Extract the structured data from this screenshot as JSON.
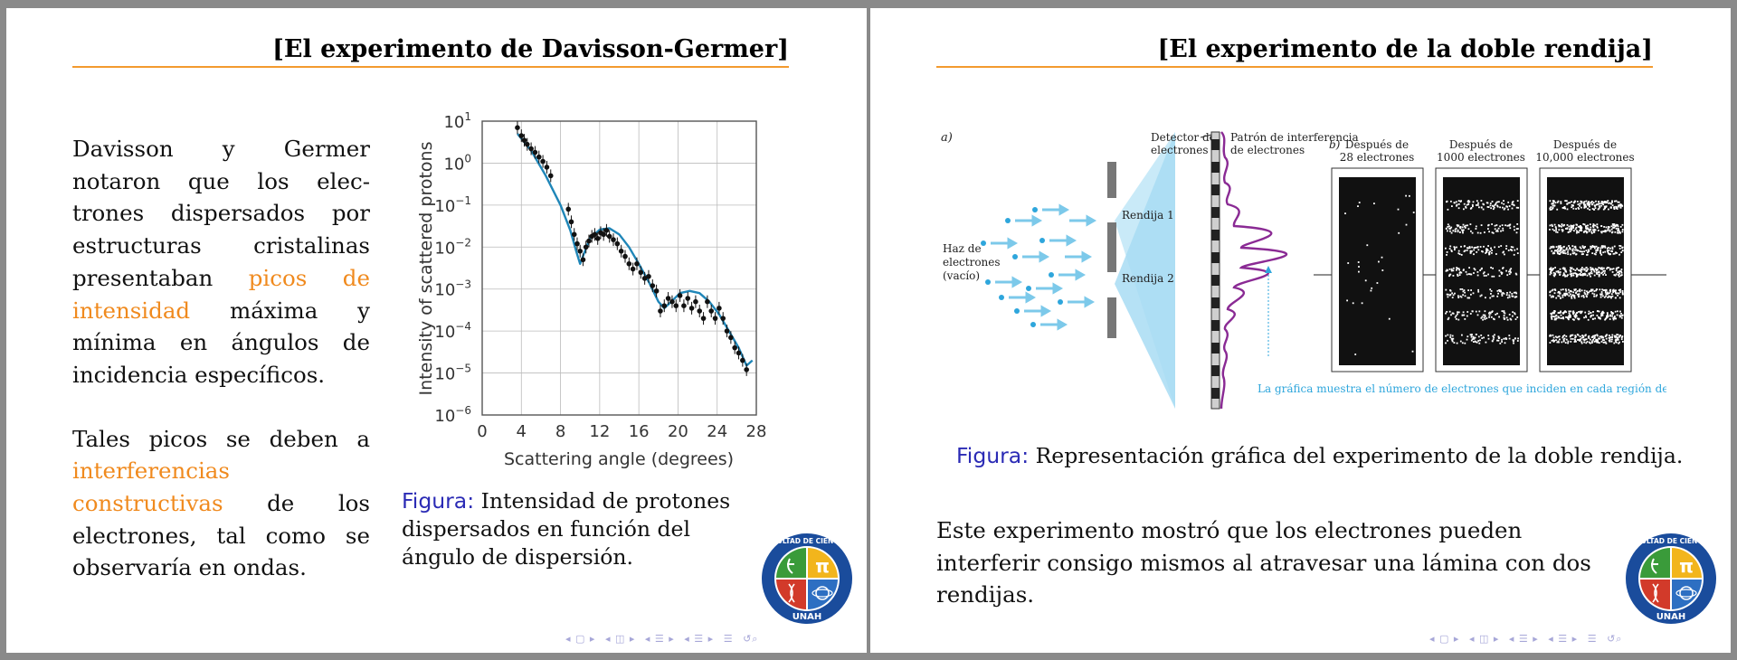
{
  "left_slide": {
    "title": "[El experimento de Davisson-Germer]",
    "paragraph1": {
      "part1": "Davisson y Germer notaron que los elec­trones dispersados por estructuras cristalinas presentaban ",
      "highlight": "picos de intensidad",
      "part2": " máxima y mínima en ángulos de incidencia específicos."
    },
    "paragraph2": {
      "part1": "Tales picos se deben a ",
      "highlight": "interferencias constructivas",
      "part2": " de los electrones, tal como se observaría en ondas."
    },
    "caption_label": "Figura:",
    "caption_text": " Intensidad de protones dispersados en función del ángulo de dispersión."
  },
  "chart_data": {
    "type": "scatter",
    "title": "",
    "xlabel": "Scattering angle (degrees)",
    "ylabel": "Intensity of scattered protons",
    "xlim": [
      0,
      28
    ],
    "ylim_log10": [
      -6,
      1
    ],
    "y_scale": "log",
    "grid": true,
    "x_ticks": [
      "0",
      "4",
      "8",
      "12",
      "16",
      "20",
      "24",
      "28"
    ],
    "y_ticks": [
      {
        "base": "10",
        "exp": "1",
        "value": 1
      },
      {
        "base": "10",
        "exp": "0",
        "value": 0
      },
      {
        "base": "10",
        "exp": "−1",
        "value": -1
      },
      {
        "base": "10",
        "exp": "−2",
        "value": -2
      },
      {
        "base": "10",
        "exp": "−3",
        "value": -3
      },
      {
        "base": "10",
        "exp": "−4",
        "value": -4
      },
      {
        "base": "10",
        "exp": "−5",
        "value": -5
      },
      {
        "base": "10",
        "exp": "−6",
        "value": -6
      }
    ],
    "colors": {
      "curve": "#1f86b8",
      "points": "#111111",
      "grid": "#bbbbbb"
    },
    "points": [
      {
        "x": 3.6,
        "y": 7.0
      },
      {
        "x": 4.0,
        "y": 4.5
      },
      {
        "x": 4.3,
        "y": 3.5
      },
      {
        "x": 4.6,
        "y": 2.8
      },
      {
        "x": 5.0,
        "y": 2.2
      },
      {
        "x": 5.4,
        "y": 1.8
      },
      {
        "x": 5.8,
        "y": 1.4
      },
      {
        "x": 6.2,
        "y": 1.1
      },
      {
        "x": 6.6,
        "y": 0.8
      },
      {
        "x": 7.0,
        "y": 0.5
      },
      {
        "x": 8.8,
        "y": 0.08
      },
      {
        "x": 9.1,
        "y": 0.04
      },
      {
        "x": 9.4,
        "y": 0.02
      },
      {
        "x": 9.7,
        "y": 0.012
      },
      {
        "x": 10.0,
        "y": 0.008
      },
      {
        "x": 10.3,
        "y": 0.005
      },
      {
        "x": 10.6,
        "y": 0.01
      },
      {
        "x": 10.9,
        "y": 0.014
      },
      {
        "x": 11.2,
        "y": 0.018
      },
      {
        "x": 11.5,
        "y": 0.02
      },
      {
        "x": 11.8,
        "y": 0.016
      },
      {
        "x": 12.1,
        "y": 0.022
      },
      {
        "x": 12.4,
        "y": 0.02
      },
      {
        "x": 12.7,
        "y": 0.025
      },
      {
        "x": 13.0,
        "y": 0.018
      },
      {
        "x": 13.4,
        "y": 0.015
      },
      {
        "x": 13.8,
        "y": 0.012
      },
      {
        "x": 14.2,
        "y": 0.008
      },
      {
        "x": 14.6,
        "y": 0.006
      },
      {
        "x": 15.0,
        "y": 0.004
      },
      {
        "x": 15.4,
        "y": 0.003
      },
      {
        "x": 15.8,
        "y": 0.004
      },
      {
        "x": 16.2,
        "y": 0.0025
      },
      {
        "x": 16.6,
        "y": 0.0018
      },
      {
        "x": 17.0,
        "y": 0.002
      },
      {
        "x": 17.4,
        "y": 0.0012
      },
      {
        "x": 17.8,
        "y": 0.0009
      },
      {
        "x": 18.2,
        "y": 0.0003
      },
      {
        "x": 18.6,
        "y": 0.0004
      },
      {
        "x": 19.0,
        "y": 0.0006
      },
      {
        "x": 19.4,
        "y": 0.0005
      },
      {
        "x": 19.8,
        "y": 0.0004
      },
      {
        "x": 20.2,
        "y": 0.0007
      },
      {
        "x": 20.6,
        "y": 0.0004
      },
      {
        "x": 21.0,
        "y": 0.0006
      },
      {
        "x": 21.4,
        "y": 0.00035
      },
      {
        "x": 21.8,
        "y": 0.0005
      },
      {
        "x": 22.2,
        "y": 0.0003
      },
      {
        "x": 22.6,
        "y": 0.0002
      },
      {
        "x": 23.0,
        "y": 0.0005
      },
      {
        "x": 23.4,
        "y": 0.0003
      },
      {
        "x": 23.8,
        "y": 0.0002
      },
      {
        "x": 24.2,
        "y": 0.00035
      },
      {
        "x": 24.6,
        "y": 0.0002
      },
      {
        "x": 25.0,
        "y": 0.0001
      },
      {
        "x": 25.4,
        "y": 7e-05
      },
      {
        "x": 25.8,
        "y": 4e-05
      },
      {
        "x": 26.2,
        "y": 3e-05
      },
      {
        "x": 26.6,
        "y": 2e-05
      },
      {
        "x": 27.0,
        "y": 1.2e-05
      }
    ],
    "curve": [
      {
        "x": 3.6,
        "y": 5.0
      },
      {
        "x": 5.0,
        "y": 2.0
      },
      {
        "x": 6.5,
        "y": 0.5
      },
      {
        "x": 8.0,
        "y": 0.1
      },
      {
        "x": 9.0,
        "y": 0.025
      },
      {
        "x": 9.6,
        "y": 0.008
      },
      {
        "x": 10.0,
        "y": 0.004
      },
      {
        "x": 10.4,
        "y": 0.007
      },
      {
        "x": 11.0,
        "y": 0.016
      },
      {
        "x": 12.0,
        "y": 0.026
      },
      {
        "x": 13.0,
        "y": 0.028
      },
      {
        "x": 14.0,
        "y": 0.02
      },
      {
        "x": 15.0,
        "y": 0.01
      },
      {
        "x": 16.0,
        "y": 0.004
      },
      {
        "x": 17.0,
        "y": 0.0015
      },
      {
        "x": 18.0,
        "y": 0.0005
      },
      {
        "x": 18.6,
        "y": 0.00035
      },
      {
        "x": 19.3,
        "y": 0.0005
      },
      {
        "x": 20.2,
        "y": 0.0008
      },
      {
        "x": 21.2,
        "y": 0.0009
      },
      {
        "x": 22.2,
        "y": 0.0008
      },
      {
        "x": 23.2,
        "y": 0.0005
      },
      {
        "x": 24.2,
        "y": 0.00025
      },
      {
        "x": 25.2,
        "y": 0.0001
      },
      {
        "x": 26.2,
        "y": 4e-05
      },
      {
        "x": 27.0,
        "y": 1.5e-05
      },
      {
        "x": 27.6,
        "y": 2e-05
      }
    ]
  },
  "right_slide": {
    "title": "[El experimento de la doble rendija]",
    "figure": {
      "panel_a": "a)",
      "detector_label_1": "Detector de",
      "detector_label_2": "electrones",
      "pattern_label_1": "Patrón de interferencia",
      "pattern_label_2": "de electrones",
      "beam_label_1": "Haz de",
      "beam_label_2": "electrones",
      "beam_label_3": "(vacío)",
      "slit1": "Rendija 1",
      "slit2": "Rendija 2",
      "panel_b": "b)",
      "after_28_1": "Después de",
      "after_28_2": "28 electrones",
      "after_1000_1": "Después de",
      "after_1000_2": "1000 electrones",
      "after_10000_1": "Después de",
      "after_10000_2": "10,000 electrones",
      "note": "La gráfica muestra el número de electrones que inciden en cada región del detector."
    },
    "caption_label": "Figura:",
    "caption_text": " Representación gráfica del experimento de la doble rendija.",
    "paragraph": "Este experimento mostró que los electrones pueden interferir consigo mismos al atravesar una lámina con dos rendijas."
  },
  "logo": {
    "top_text": "FACULTAD DE CIENCIAS",
    "bottom_text": "UNAH",
    "pi": "π",
    "colors": {
      "ring": "#1a4c9c",
      "green": "#3a9b3a",
      "yellow": "#f2b51c",
      "red": "#d23a2a",
      "blue": "#2d6fc2"
    }
  },
  "nav_icons": [
    "nav-prev-frame-icon",
    "nav-next-frame-icon",
    "nav-subsection-icon",
    "nav-section-icon",
    "nav-toc-icon",
    "nav-search-icon"
  ]
}
